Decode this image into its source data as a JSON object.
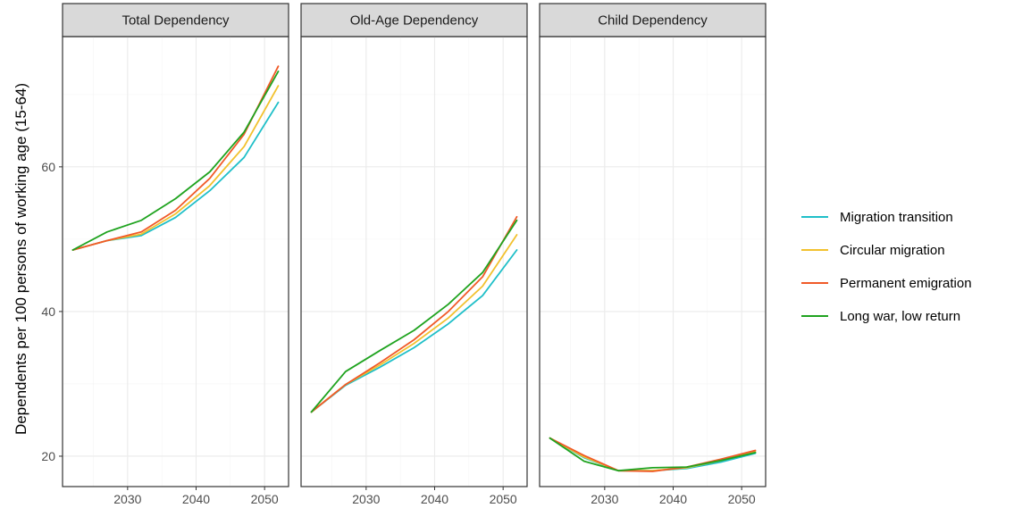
{
  "chart_data": {
    "type": "line",
    "ylabel": "Dependents per 100 persons of working age (15-64)",
    "xlabel": "",
    "x": [
      2022,
      2027,
      2032,
      2037,
      2042,
      2047,
      2052
    ],
    "x_ticks": [
      2030,
      2040,
      2050
    ],
    "x_tick_labels": [
      "2030",
      "2040",
      "2050"
    ],
    "xlim": [
      2020.5,
      2053.5
    ],
    "y_ticks": [
      20,
      40,
      60
    ],
    "y_tick_labels": [
      "20",
      "40",
      "60"
    ],
    "ylim": [
      15.8,
      78.0
    ],
    "grid": true,
    "legend_position": "right",
    "legend": [
      {
        "name": "Migration transition",
        "color": "#1fbfc8"
      },
      {
        "name": "Circular migration",
        "color": "#f2c12e"
      },
      {
        "name": "Permanent emigration",
        "color": "#f05a28"
      },
      {
        "name": "Long war, low return",
        "color": "#1fa31f"
      }
    ],
    "panels": [
      {
        "title": "Total Dependency",
        "series": [
          {
            "name": "Migration transition",
            "values": [
              48.5,
              49.8,
              50.5,
              53.0,
              56.7,
              61.3,
              68.9
            ]
          },
          {
            "name": "Circular migration",
            "values": [
              48.5,
              49.8,
              50.7,
              53.5,
              57.4,
              62.8,
              71.2
            ]
          },
          {
            "name": "Permanent emigration",
            "values": [
              48.5,
              49.8,
              51.0,
              54.0,
              58.4,
              64.5,
              73.9
            ]
          },
          {
            "name": "Long war, low return",
            "values": [
              48.5,
              51.0,
              52.6,
              55.6,
              59.3,
              64.8,
              73.2
            ]
          }
        ]
      },
      {
        "title": "Old-Age Dependency",
        "series": [
          {
            "name": "Migration transition",
            "values": [
              26.1,
              29.8,
              32.3,
              35.0,
              38.3,
              42.2,
              48.5
            ]
          },
          {
            "name": "Circular migration",
            "values": [
              26.1,
              29.9,
              32.6,
              35.6,
              39.1,
              43.5,
              50.6
            ]
          },
          {
            "name": "Permanent emigration",
            "values": [
              26.1,
              29.9,
              32.9,
              36.1,
              40.0,
              44.8,
              53.1
            ]
          },
          {
            "name": "Long war, low return",
            "values": [
              26.1,
              31.7,
              34.6,
              37.4,
              41.0,
              45.4,
              52.6
            ]
          }
        ]
      },
      {
        "title": "Child Dependency",
        "series": [
          {
            "name": "Migration transition",
            "values": [
              22.5,
              19.8,
              18.0,
              18.0,
              18.3,
              19.2,
              20.4
            ]
          },
          {
            "name": "Circular migration",
            "values": [
              22.5,
              19.9,
              18.0,
              18.0,
              18.4,
              19.4,
              20.6
            ]
          },
          {
            "name": "Permanent emigration",
            "values": [
              22.5,
              20.1,
              18.0,
              17.9,
              18.5,
              19.6,
              20.8
            ]
          },
          {
            "name": "Long war, low return",
            "values": [
              22.5,
              19.3,
              18.0,
              18.4,
              18.5,
              19.4,
              20.5
            ]
          }
        ]
      }
    ]
  }
}
